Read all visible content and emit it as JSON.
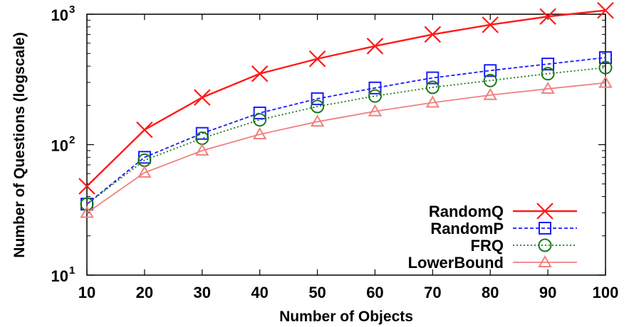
{
  "chart_data": {
    "type": "line",
    "title": "",
    "xlabel": "Number of Objects",
    "ylabel": "Number of Questions (logscale)",
    "x": [
      10,
      20,
      30,
      40,
      50,
      60,
      70,
      80,
      90,
      100
    ],
    "xlim": [
      10,
      100
    ],
    "ylim": [
      10,
      1000
    ],
    "yscale": "log",
    "xticks": [
      "10",
      "20",
      "30",
      "40",
      "50",
      "60",
      "70",
      "80",
      "90",
      "100"
    ],
    "yticks": [
      {
        "base": "10",
        "exp": "1",
        "value": 10
      },
      {
        "base": "10",
        "exp": "2",
        "value": 100
      },
      {
        "base": "10",
        "exp": "3",
        "value": 1000
      }
    ],
    "grid": false,
    "legend_position": "bottom-right",
    "series": [
      {
        "name": "RandomQ",
        "color": "#ff1a1a",
        "marker": "x",
        "line": "solid",
        "values": [
          48,
          130,
          230,
          350,
          455,
          570,
          700,
          830,
          960,
          1070
        ]
      },
      {
        "name": "RandomP",
        "color": "#1a1aff",
        "marker": "square",
        "line": "dashed",
        "values": [
          35,
          80,
          122,
          175,
          225,
          272,
          325,
          370,
          415,
          465
        ]
      },
      {
        "name": "FRQ",
        "color": "#1a7a1a",
        "marker": "circle",
        "line": "dotted",
        "values": [
          35,
          76,
          112,
          155,
          196,
          236,
          275,
          310,
          350,
          390
        ]
      },
      {
        "name": "LowerBound",
        "color": "#f08080",
        "marker": "triangle",
        "line": "solid",
        "values": [
          30,
          61,
          90,
          120,
          150,
          180,
          210,
          240,
          268,
          298
        ]
      }
    ]
  }
}
